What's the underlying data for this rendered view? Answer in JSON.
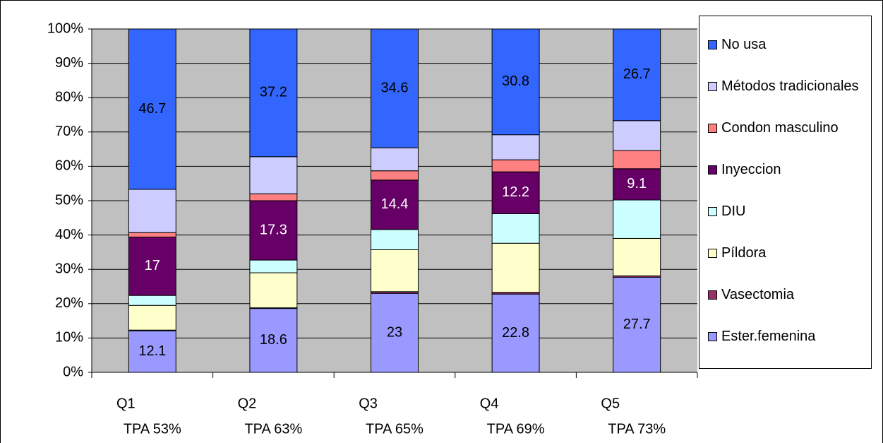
{
  "chart_data": {
    "type": "stacked_bar_percent",
    "categories": [
      [
        "Q1",
        "TPA 53%"
      ],
      [
        "Q2",
        "TPA 63%"
      ],
      [
        "Q3",
        "TPA 65%"
      ],
      [
        "Q4",
        "TPA 69%"
      ],
      [
        "Q5",
        "TPA 73%"
      ]
    ],
    "series": [
      {
        "name": "Ester.femenina",
        "color": "#9999ff",
        "values": [
          12.1,
          18.6,
          23,
          22.8,
          27.7
        ],
        "data_labels": true,
        "label_color": "#000000"
      },
      {
        "name": "Vasectomia",
        "color": "#993366",
        "values": [
          0.2,
          0.2,
          0.5,
          0.5,
          0.4
        ],
        "data_labels": false
      },
      {
        "name": "Píldora",
        "color": "#ffffcc",
        "values": [
          7.2,
          10.2,
          12.2,
          14.3,
          10.9
        ],
        "data_labels": false
      },
      {
        "name": "DIU",
        "color": "#ccffff",
        "values": [
          2.9,
          3.7,
          5.9,
          8.6,
          11.2
        ],
        "data_labels": false
      },
      {
        "name": "Inyeccion",
        "color": "#660066",
        "values": [
          17,
          17.3,
          14.4,
          12.2,
          9.1
        ],
        "data_labels": true,
        "label_color": "#ffffff"
      },
      {
        "name": "Condon masculino",
        "color": "#ff8080",
        "values": [
          1.3,
          2,
          2.7,
          3.5,
          5.3
        ],
        "data_labels": false
      },
      {
        "name": "Métodos tradicionales",
        "color": "#ccccff",
        "values": [
          12.6,
          10.8,
          6.7,
          7.3,
          8.7
        ],
        "data_labels": false
      },
      {
        "name": "No usa",
        "color": "#3366ff",
        "values": [
          46.7,
          37.2,
          34.6,
          30.8,
          26.7
        ],
        "data_labels": true,
        "label_color": "#000000"
      }
    ],
    "ylim": [
      0,
      100
    ],
    "yticks": [
      {
        "value": 0,
        "label": "0%"
      },
      {
        "value": 10,
        "label": "10%"
      },
      {
        "value": 20,
        "label": "20%"
      },
      {
        "value": 30,
        "label": "30%"
      },
      {
        "value": 40,
        "label": "40%"
      },
      {
        "value": 50,
        "label": "50%"
      },
      {
        "value": 60,
        "label": "60%"
      },
      {
        "value": 70,
        "label": "70%"
      },
      {
        "value": 80,
        "label": "80%"
      },
      {
        "value": 90,
        "label": "90%"
      },
      {
        "value": 100,
        "label": "100%"
      }
    ],
    "grid": true,
    "plot_background": "#c0c0c0",
    "legend": "right"
  }
}
